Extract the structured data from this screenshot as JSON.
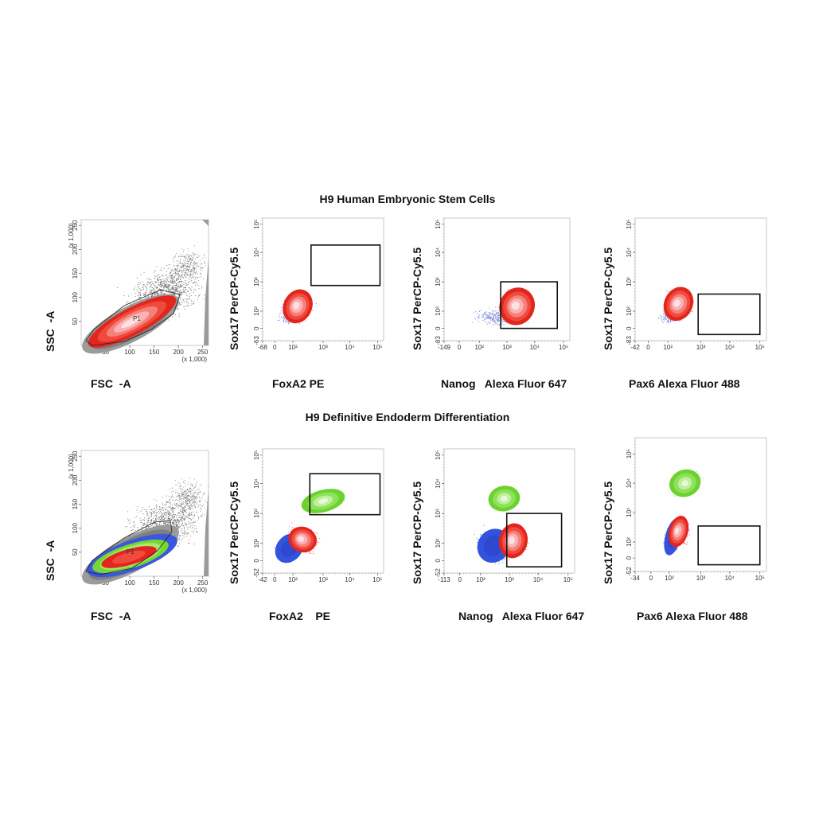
{
  "figure": {
    "rows": [
      {
        "title": "H9  Human Embryonic Stem Cells",
        "panels": [
          {
            "type": "scatter-density",
            "xlabel": "FSC  -A",
            "ylabel": "SSC  -A",
            "xticks": [
              "50",
              "100",
              "150",
              "200",
              "250"
            ],
            "yticks": [
              "50",
              "100",
              "150",
              "200",
              "250"
            ],
            "xmult": "(x 1,000)",
            "ymult": "(x 1,000)",
            "gate_label": "P1",
            "populations": [
              "red"
            ]
          },
          {
            "type": "scatter-density",
            "xlabel": "FoxA2 PE",
            "ylabel": "Sox17 PerCP-Cy5.5",
            "xticks": [
              "-68",
              "0",
              "10²",
              "10³",
              "10⁴",
              "10⁵"
            ],
            "yticks": [
              "-63",
              "0",
              "10²",
              "10³",
              "10⁴",
              "10⁵"
            ],
            "populations": [
              "red"
            ]
          },
          {
            "type": "scatter-density",
            "xlabel": "Nanog   Alexa Fluor 647",
            "ylabel": "Sox17 PerCP-Cy5.5",
            "xticks": [
              "-149",
              "0",
              "10²",
              "10³",
              "10⁴",
              "10⁵"
            ],
            "yticks": [
              "-83",
              "0",
              "10²",
              "10³",
              "10⁴",
              "10⁵"
            ],
            "populations": [
              "red"
            ]
          },
          {
            "type": "scatter-density",
            "xlabel": "Pax6 Alexa Fluor 488",
            "ylabel": "Sox17 PerCP-Cy5.5",
            "xticks": [
              "-42",
              "0",
              "10²",
              "10³",
              "10⁴",
              "10⁵"
            ],
            "yticks": [
              "-83",
              "0",
              "10²",
              "10³",
              "10⁴",
              "10⁵"
            ],
            "populations": [
              "red"
            ]
          }
        ]
      },
      {
        "title": "H9 Definitive Endoderm Differentiation",
        "panels": [
          {
            "type": "scatter-density",
            "xlabel": "FSC  -A",
            "ylabel": "SSC  -A",
            "xticks": [
              "50",
              "100",
              "150",
              "200",
              "250"
            ],
            "yticks": [
              "50",
              "100",
              "150",
              "200",
              "250"
            ],
            "xmult": "(x 1,000)",
            "ymult": "(x 1,000)",
            "gate_label": "P1",
            "populations": [
              "blue",
              "green",
              "red"
            ]
          },
          {
            "type": "scatter-density",
            "xlabel": "FoxA2    PE",
            "ylabel": "Sox17 PerCP-Cy5.5",
            "xticks": [
              "-42",
              "0",
              "10²",
              "10³",
              "10⁴",
              "10⁵"
            ],
            "yticks": [
              "-52",
              "0",
              "10²",
              "10³",
              "10⁴",
              "10⁵"
            ],
            "populations": [
              "blue",
              "red",
              "green"
            ]
          },
          {
            "type": "scatter-density",
            "xlabel": "Nanog   Alexa Fluor 647",
            "ylabel": "Sox17 PerCP-Cy5.5",
            "xticks": [
              "-113",
              "0",
              "10²",
              "10³",
              "10⁴",
              "10⁵"
            ],
            "yticks": [
              "-52",
              "0",
              "10²",
              "10³",
              "10⁴",
              "10⁵"
            ],
            "populations": [
              "blue",
              "red",
              "green"
            ]
          },
          {
            "type": "scatter-density",
            "xlabel": "Pax6 Alexa Fluor 488",
            "ylabel": "Sox17 PerCP-Cy5.5",
            "xticks": [
              "-34",
              "0",
              "10²",
              "10³",
              "10⁴",
              "10⁵"
            ],
            "yticks": [
              "-52",
              "0",
              "10²",
              "10³",
              "10⁴",
              "10⁵"
            ],
            "populations": [
              "blue",
              "red",
              "green"
            ]
          }
        ]
      }
    ],
    "colors": {
      "red": "#e8261c",
      "green": "#7dd83a",
      "blue": "#3e5fe0",
      "grey": "#8a8a8a",
      "gate": "#111111"
    }
  }
}
